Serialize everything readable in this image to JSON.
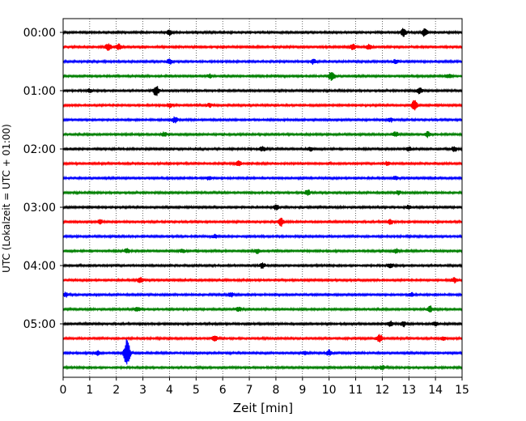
{
  "chart_data": {
    "type": "line",
    "title": "",
    "xlabel": "Zeit  [min]",
    "ylabel": "UTC (Lokalzeit = UTC + 01:00)",
    "xlim": [
      0,
      15
    ],
    "x_ticks": [
      "0",
      "1",
      "2",
      "3",
      "4",
      "5",
      "6",
      "7",
      "8",
      "9",
      "10",
      "11",
      "12",
      "13",
      "14",
      "15"
    ],
    "y_tick_labels": [
      "00:00",
      "01:00",
      "02:00",
      "03:00",
      "04:00",
      "05:00"
    ],
    "grid": "vertical dotted",
    "trace_interval_minutes": 15,
    "trace_colors": [
      "#000000",
      "#ff0000",
      "#0000ff",
      "#008000"
    ],
    "traces": [
      {
        "start": "00:00",
        "events": [
          {
            "x": 4.0,
            "a": 0.35
          },
          {
            "x": 12.8,
            "a": 0.55
          },
          {
            "x": 13.6,
            "a": 0.6
          }
        ]
      },
      {
        "start": "00:15",
        "events": [
          {
            "x": 1.7,
            "a": 0.5
          },
          {
            "x": 2.1,
            "a": 0.4
          },
          {
            "x": 10.9,
            "a": 0.5
          },
          {
            "x": 11.5,
            "a": 0.3
          }
        ]
      },
      {
        "start": "00:30",
        "events": [
          {
            "x": 4.0,
            "a": 0.35
          },
          {
            "x": 9.4,
            "a": 0.35
          },
          {
            "x": 12.5,
            "a": 0.3
          }
        ]
      },
      {
        "start": "00:45",
        "events": [
          {
            "x": 10.1,
            "a": 0.7
          },
          {
            "x": 5.5,
            "a": 0.25
          },
          {
            "x": 14.5,
            "a": 0.3
          }
        ]
      },
      {
        "start": "01:00",
        "events": [
          {
            "x": 3.5,
            "a": 0.7
          },
          {
            "x": 13.4,
            "a": 0.4
          },
          {
            "x": 1.0,
            "a": 0.25
          }
        ]
      },
      {
        "start": "01:15",
        "events": [
          {
            "x": 4.0,
            "a": 0.3
          },
          {
            "x": 5.5,
            "a": 0.25
          },
          {
            "x": 13.2,
            "a": 0.7
          }
        ]
      },
      {
        "start": "01:30",
        "events": [
          {
            "x": 4.2,
            "a": 0.4
          },
          {
            "x": 12.3,
            "a": 0.3
          }
        ]
      },
      {
        "start": "01:45",
        "events": [
          {
            "x": 3.8,
            "a": 0.3
          },
          {
            "x": 12.5,
            "a": 0.35
          },
          {
            "x": 13.7,
            "a": 0.35
          }
        ]
      },
      {
        "start": "02:00",
        "events": [
          {
            "x": 7.5,
            "a": 0.3
          },
          {
            "x": 9.3,
            "a": 0.25
          },
          {
            "x": 13.0,
            "a": 0.3
          },
          {
            "x": 14.7,
            "a": 0.35
          }
        ]
      },
      {
        "start": "02:15",
        "events": [
          {
            "x": 6.6,
            "a": 0.35
          },
          {
            "x": 12.2,
            "a": 0.3
          }
        ]
      },
      {
        "start": "02:30",
        "events": [
          {
            "x": 5.5,
            "a": 0.3
          },
          {
            "x": 12.5,
            "a": 0.25
          }
        ]
      },
      {
        "start": "02:45",
        "events": [
          {
            "x": 9.2,
            "a": 0.35
          },
          {
            "x": 12.6,
            "a": 0.25
          }
        ]
      },
      {
        "start": "03:00",
        "events": [
          {
            "x": 8.0,
            "a": 0.35
          },
          {
            "x": 13.0,
            "a": 0.3
          }
        ]
      },
      {
        "start": "03:15",
        "events": [
          {
            "x": 8.2,
            "a": 0.55
          },
          {
            "x": 1.4,
            "a": 0.3
          },
          {
            "x": 12.3,
            "a": 0.3
          }
        ]
      },
      {
        "start": "03:30",
        "events": [
          {
            "x": 5.7,
            "a": 0.25
          }
        ]
      },
      {
        "start": "03:45",
        "events": [
          {
            "x": 2.4,
            "a": 0.3
          },
          {
            "x": 4.5,
            "a": 0.3
          },
          {
            "x": 7.3,
            "a": 0.3
          },
          {
            "x": 12.5,
            "a": 0.3
          }
        ]
      },
      {
        "start": "04:00",
        "events": [
          {
            "x": 7.5,
            "a": 0.35
          },
          {
            "x": 12.3,
            "a": 0.3
          }
        ]
      },
      {
        "start": "04:15",
        "events": [
          {
            "x": 2.9,
            "a": 0.4
          },
          {
            "x": 14.7,
            "a": 0.35
          }
        ]
      },
      {
        "start": "04:30",
        "events": [
          {
            "x": 0.1,
            "a": 0.3
          },
          {
            "x": 6.3,
            "a": 0.3
          },
          {
            "x": 13.1,
            "a": 0.3
          }
        ]
      },
      {
        "start": "04:45",
        "events": [
          {
            "x": 2.8,
            "a": 0.3
          },
          {
            "x": 6.6,
            "a": 0.3
          },
          {
            "x": 13.8,
            "a": 0.4
          }
        ]
      },
      {
        "start": "05:00",
        "events": [
          {
            "x": 12.3,
            "a": 0.4
          },
          {
            "x": 12.8,
            "a": 0.35
          },
          {
            "x": 14.0,
            "a": 0.3
          }
        ]
      },
      {
        "start": "05:15",
        "events": [
          {
            "x": 5.7,
            "a": 0.4
          },
          {
            "x": 11.9,
            "a": 0.55
          },
          {
            "x": 14.3,
            "a": 0.3
          }
        ]
      },
      {
        "start": "05:30",
        "events": [
          {
            "x": 2.4,
            "a": 1.9
          },
          {
            "x": 1.3,
            "a": 0.3
          },
          {
            "x": 10.0,
            "a": 0.4
          },
          {
            "x": 9.1,
            "a": 0.25
          }
        ]
      },
      {
        "start": "05:45",
        "events": [
          {
            "x": 12.0,
            "a": 0.3
          }
        ]
      }
    ]
  }
}
